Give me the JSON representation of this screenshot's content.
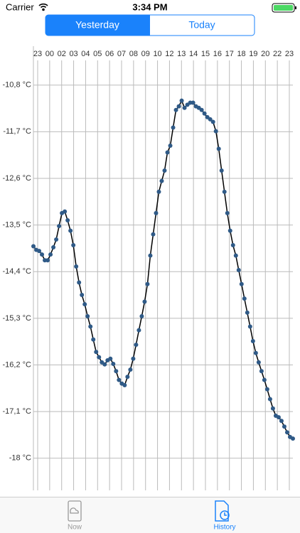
{
  "status_bar": {
    "carrier": "Carrier",
    "time": "3:34 PM"
  },
  "segments": {
    "items": [
      "Yesterday",
      "Today"
    ],
    "selected": 0
  },
  "tabs": {
    "items": [
      "Now",
      "History"
    ],
    "selected": 1
  },
  "chart_data": {
    "type": "line",
    "color": "#2f5a87",
    "line_color": "#000000",
    "grid": true,
    "x_labels": [
      "23",
      "00",
      "02",
      "03",
      "04",
      "05",
      "06",
      "07",
      "08",
      "09",
      "10",
      "12",
      "13",
      "14",
      "15",
      "16",
      "17",
      "18",
      "19",
      "20",
      "22",
      "23"
    ],
    "ylim": [
      -18.62,
      -10.05
    ],
    "yticks": [
      {
        "value": -10.8,
        "label": "-10,8 °C"
      },
      {
        "value": -11.7,
        "label": "-11,7 °C"
      },
      {
        "value": -12.6,
        "label": "-12,6 °C"
      },
      {
        "value": -13.5,
        "label": "-13,5 °C"
      },
      {
        "value": -14.4,
        "label": "-14,4 °C"
      },
      {
        "value": -15.3,
        "label": "-15,3 °C"
      },
      {
        "value": -16.2,
        "label": "-16,2 °C"
      },
      {
        "value": -17.1,
        "label": "-17,1 °C"
      },
      {
        "value": -18,
        "label": "-18 °C"
      }
    ],
    "values": [
      -13.91,
      -13.98,
      -14.0,
      -14.07,
      -14.18,
      -14.18,
      -14.07,
      -13.93,
      -13.78,
      -13.52,
      -13.27,
      -13.24,
      -13.41,
      -13.61,
      -13.89,
      -14.3,
      -14.61,
      -14.85,
      -15.03,
      -15.26,
      -15.46,
      -15.71,
      -15.95,
      -16.05,
      -16.15,
      -16.19,
      -16.11,
      -16.08,
      -16.18,
      -16.32,
      -16.49,
      -16.56,
      -16.59,
      -16.43,
      -16.29,
      -16.08,
      -15.81,
      -15.53,
      -15.26,
      -14.98,
      -14.64,
      -14.09,
      -13.68,
      -13.27,
      -12.86,
      -12.65,
      -12.45,
      -12.1,
      -11.97,
      -11.62,
      -11.28,
      -11.21,
      -11.1,
      -11.24,
      -11.18,
      -11.14,
      -11.14,
      -11.21,
      -11.24,
      -11.28,
      -11.35,
      -11.42,
      -11.46,
      -11.51,
      -11.69,
      -12.03,
      -12.45,
      -12.86,
      -13.27,
      -13.61,
      -13.89,
      -14.09,
      -14.37,
      -14.64,
      -14.92,
      -15.19,
      -15.46,
      -15.74,
      -15.97,
      -16.15,
      -16.32,
      -16.49,
      -16.67,
      -16.86,
      -17.04,
      -17.18,
      -17.21,
      -17.28,
      -17.39,
      -17.5,
      -17.59,
      -17.62
    ]
  }
}
